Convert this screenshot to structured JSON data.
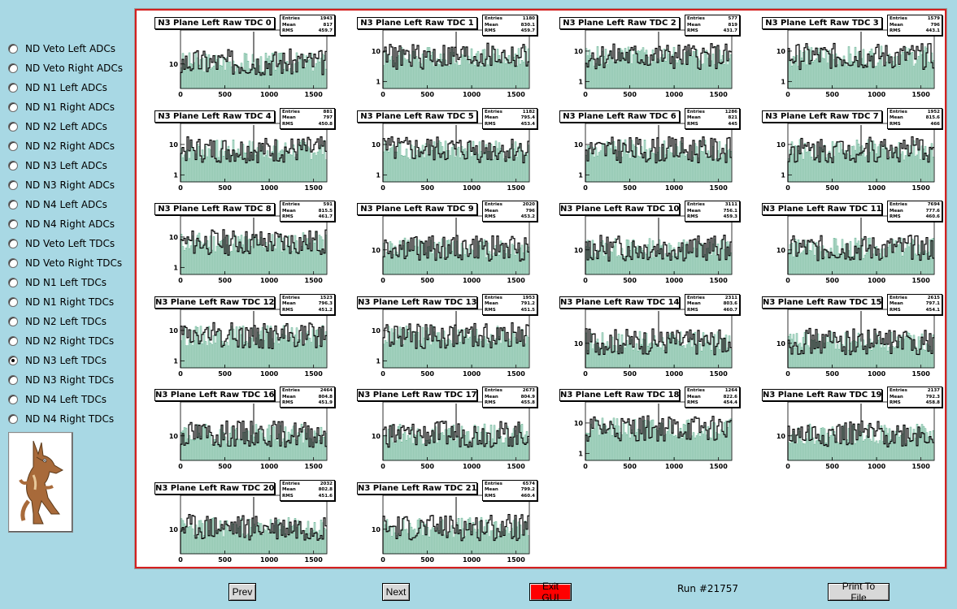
{
  "sidebar": {
    "options": [
      {
        "label": "ND Veto Left ADCs",
        "checked": false
      },
      {
        "label": "ND Veto Right ADCs",
        "checked": false
      },
      {
        "label": "ND N1 Left ADCs",
        "checked": false
      },
      {
        "label": "ND N1 Right ADCs",
        "checked": false
      },
      {
        "label": "ND N2 Left ADCs",
        "checked": false
      },
      {
        "label": "ND N2 Right ADCs",
        "checked": false
      },
      {
        "label": "ND N3 Left ADCs",
        "checked": false
      },
      {
        "label": "ND N3 Right ADCs",
        "checked": false
      },
      {
        "label": "ND N4 Left ADCs",
        "checked": false
      },
      {
        "label": "ND N4 Right ADCs",
        "checked": false
      },
      {
        "label": "ND Veto Left TDCs",
        "checked": false
      },
      {
        "label": "ND Veto Right TDCs",
        "checked": false
      },
      {
        "label": "ND N1 Left TDCs",
        "checked": false
      },
      {
        "label": "ND N1 Right TDCs",
        "checked": false
      },
      {
        "label": "ND N2 Left TDCs",
        "checked": false
      },
      {
        "label": "ND N2 Right TDCs",
        "checked": false
      },
      {
        "label": "ND N3 Left TDCs",
        "checked": true
      },
      {
        "label": "ND N3 Right TDCs",
        "checked": false
      },
      {
        "label": "ND N4 Left TDCs",
        "checked": false
      },
      {
        "label": "ND N4 Right TDCs",
        "checked": false
      }
    ]
  },
  "stat_labels": {
    "entries": "Entries",
    "mean": "Mean",
    "rms": "RMS"
  },
  "x_ticks": [
    "0",
    "500",
    "1000",
    "1500"
  ],
  "colors": {
    "background": "#a8d8e4",
    "frame_border": "#d42020",
    "fill_hist": "#3f9f77",
    "line_hist": "#000000",
    "exit_button": "#ff0000"
  },
  "histograms": [
    {
      "title": "N3 Plane Left Raw TDC 0",
      "entries": "1943",
      "mean": "817",
      "rms": "459.7",
      "y_ticks": [
        "10"
      ]
    },
    {
      "title": "N3 Plane Left Raw TDC 1",
      "entries": "1180",
      "mean": "830.1",
      "rms": "459.7",
      "y_ticks": [
        "10",
        "1"
      ]
    },
    {
      "title": "N3 Plane Left Raw TDC 2",
      "entries": "577",
      "mean": "819",
      "rms": "431.7",
      "y_ticks": [
        "10",
        "1"
      ]
    },
    {
      "title": "N3 Plane Left Raw TDC 3",
      "entries": "1579",
      "mean": "796",
      "rms": "443.1",
      "y_ticks": [
        "10",
        "1"
      ]
    },
    {
      "title": "N3 Plane Left Raw TDC 4",
      "entries": "881",
      "mean": "797",
      "rms": "450.8",
      "y_ticks": [
        "10",
        "1"
      ]
    },
    {
      "title": "N3 Plane Left Raw TDC 5",
      "entries": "1182",
      "mean": "795.4",
      "rms": "453.4",
      "y_ticks": [
        "10",
        "1"
      ]
    },
    {
      "title": "N3 Plane Left Raw TDC 6",
      "entries": "1286",
      "mean": "821",
      "rms": "445",
      "y_ticks": [
        "10",
        "1"
      ]
    },
    {
      "title": "N3 Plane Left Raw TDC 7",
      "entries": "1952",
      "mean": "815.6",
      "rms": "466",
      "y_ticks": [
        "10",
        "1"
      ]
    },
    {
      "title": "N3 Plane Left Raw TDC 8",
      "entries": "591",
      "mean": "815.5",
      "rms": "461.7",
      "y_ticks": [
        "10",
        "1"
      ]
    },
    {
      "title": "N3 Plane Left Raw TDC 9",
      "entries": "2020",
      "mean": "796",
      "rms": "453.2",
      "y_ticks": [
        "10"
      ]
    },
    {
      "title": "N3 Plane Left Raw TDC 10",
      "entries": "3111",
      "mean": "756.1",
      "rms": "459.3",
      "y_ticks": [
        "10"
      ]
    },
    {
      "title": "N3 Plane Left Raw TDC 11",
      "entries": "7694",
      "mean": "777.6",
      "rms": "460.6",
      "y_ticks": [
        "10"
      ]
    },
    {
      "title": "N3 Plane Left Raw TDC 12",
      "entries": "1523",
      "mean": "796.3",
      "rms": "451.2",
      "y_ticks": [
        "10",
        "1"
      ]
    },
    {
      "title": "N3 Plane Left Raw TDC 13",
      "entries": "1953",
      "mean": "791.2",
      "rms": "451.5",
      "y_ticks": [
        "10",
        "1"
      ]
    },
    {
      "title": "N3 Plane Left Raw TDC 14",
      "entries": "2311",
      "mean": "803.6",
      "rms": "460.7",
      "y_ticks": [
        "10"
      ]
    },
    {
      "title": "N3 Plane Left Raw TDC 15",
      "entries": "2615",
      "mean": "797.1",
      "rms": "454.1",
      "y_ticks": [
        "10"
      ]
    },
    {
      "title": "N3 Plane Left Raw TDC 16",
      "entries": "2464",
      "mean": "804.8",
      "rms": "451.9",
      "y_ticks": [
        "10"
      ]
    },
    {
      "title": "N3 Plane Left Raw TDC 17",
      "entries": "2673",
      "mean": "804.9",
      "rms": "455.8",
      "y_ticks": [
        "10"
      ]
    },
    {
      "title": "N3 Plane Left Raw TDC 18",
      "entries": "1264",
      "mean": "822.6",
      "rms": "454.4",
      "y_ticks": [
        "10",
        "1"
      ]
    },
    {
      "title": "N3 Plane Left Raw TDC 19",
      "entries": "2137",
      "mean": "792.3",
      "rms": "458.8",
      "y_ticks": [
        "10"
      ]
    },
    {
      "title": "N3 Plane Left Raw TDC 20",
      "entries": "2032",
      "mean": "802.8",
      "rms": "451.6",
      "y_ticks": [
        "10"
      ]
    },
    {
      "title": "N3 Plane Left Raw TDC 21",
      "entries": "6574",
      "mean": "799.2",
      "rms": "460.4",
      "y_ticks": [
        "10"
      ]
    }
  ],
  "buttons": {
    "prev": "Prev",
    "next": "Next",
    "exit": "Exit GUI",
    "print": "Print To File"
  },
  "run_label": "Run #21757"
}
